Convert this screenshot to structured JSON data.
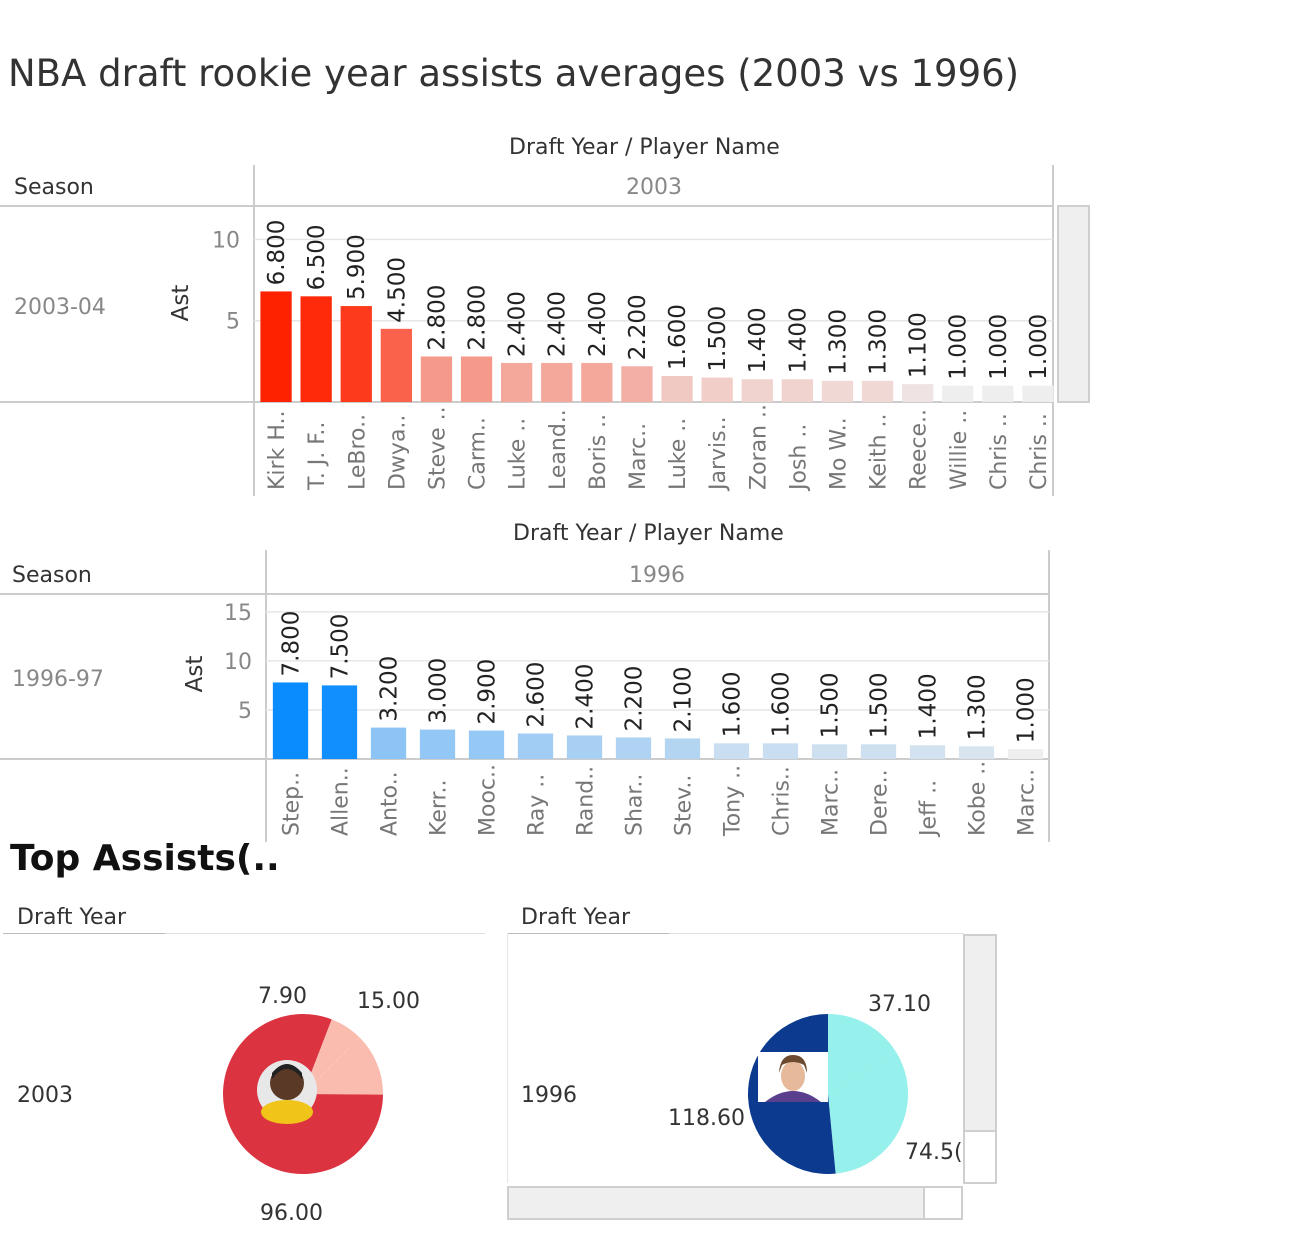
{
  "title": "NBA draft rookie year assists averages (2003 vs 1996)",
  "chart_data": [
    {
      "type": "bar",
      "header": "Draft Year  /  Player Name",
      "row_header": "Season",
      "column_value": "2003",
      "row_value": "2003-04",
      "ylabel": "Ast",
      "yticks": [
        "5",
        "10"
      ],
      "ylim": [
        0,
        11.5
      ],
      "categories": [
        "Kirk H..",
        "T. J. F..",
        "LeBro..",
        "Dwya..",
        "Steve ..",
        "Carm..",
        "Luke ..",
        "Leand..",
        "Boris ..",
        "Marc..",
        "Luke ..",
        "Jarvis..",
        "Zoran ..",
        "Josh ..",
        "Mo W..",
        "Keith ..",
        "Reece..",
        "Willie ..",
        "Chris ..",
        "Chris .."
      ],
      "values": [
        6.8,
        6.5,
        5.9,
        4.5,
        2.8,
        2.8,
        2.4,
        2.4,
        2.4,
        2.2,
        1.6,
        1.5,
        1.4,
        1.4,
        1.3,
        1.3,
        1.1,
        1.0,
        1.0,
        1.0
      ],
      "value_labels": [
        "6.800",
        "6.500",
        "5.900",
        "4.500",
        "2.800",
        "2.800",
        "2.400",
        "2.400",
        "2.400",
        "2.200",
        "1.600",
        "1.500",
        "1.400",
        "1.400",
        "1.300",
        "1.300",
        "1.100",
        "1.000",
        "1.000",
        "1.000"
      ],
      "color_scale": [
        "#eeeeee",
        "#ff2200"
      ]
    },
    {
      "type": "bar",
      "header": "Draft Year  /  Player Name",
      "row_header": "Season",
      "column_value": "1996",
      "row_value": "1996-97",
      "ylabel": "Ast",
      "yticks": [
        "5",
        "10",
        "15"
      ],
      "ylim": [
        0,
        16
      ],
      "categories": [
        "Step..",
        "Allen..",
        "Anto..",
        "Kerr..",
        "Mooc..",
        "Ray ..",
        "Rand..",
        "Shar..",
        "Stev..",
        "Tony ..",
        "Chris..",
        "Marc..",
        "Dere..",
        "Jeff ..",
        "Kobe ..",
        "Marc.."
      ],
      "values": [
        7.8,
        7.5,
        3.2,
        3.0,
        2.9,
        2.6,
        2.4,
        2.2,
        2.1,
        1.6,
        1.6,
        1.5,
        1.5,
        1.4,
        1.3,
        1.0
      ],
      "value_labels": [
        "7.800",
        "7.500",
        "3.200",
        "3.000",
        "2.900",
        "2.600",
        "2.400",
        "2.200",
        "2.100",
        "1.600",
        "1.600",
        "1.500",
        "1.500",
        "1.400",
        "1.300",
        "1.000"
      ],
      "color_scale": [
        "#eeeeee",
        "#0a8cff"
      ]
    },
    {
      "type": "pie",
      "title": "Top Assists(..",
      "header": "Draft Year",
      "row_value": "2003",
      "slices": [
        {
          "value": 15.0,
          "label": "15.00",
          "color": "#fbbcb0"
        },
        {
          "value": 96.0,
          "label": "96.00",
          "color": "#dc3341"
        },
        {
          "value": 7.9,
          "label": "7.90",
          "color": "#fbbcb0"
        }
      ]
    },
    {
      "type": "pie",
      "header": "Draft Year",
      "row_value": "1996",
      "slices": [
        {
          "value": 37.1,
          "label": "37.10",
          "color": "#96f0ec"
        },
        {
          "value": 74.5,
          "label": "74.5(",
          "color": "#96f0ec"
        },
        {
          "value": 118.6,
          "label": "118.60",
          "color": "#0b3a8f"
        }
      ]
    }
  ],
  "colors": {
    "grid": "#e6e6e6",
    "axis": "#cccccc"
  },
  "icons": {
    "player_2003": "player-photo-icon",
    "player_1996": "player-photo-icon"
  }
}
